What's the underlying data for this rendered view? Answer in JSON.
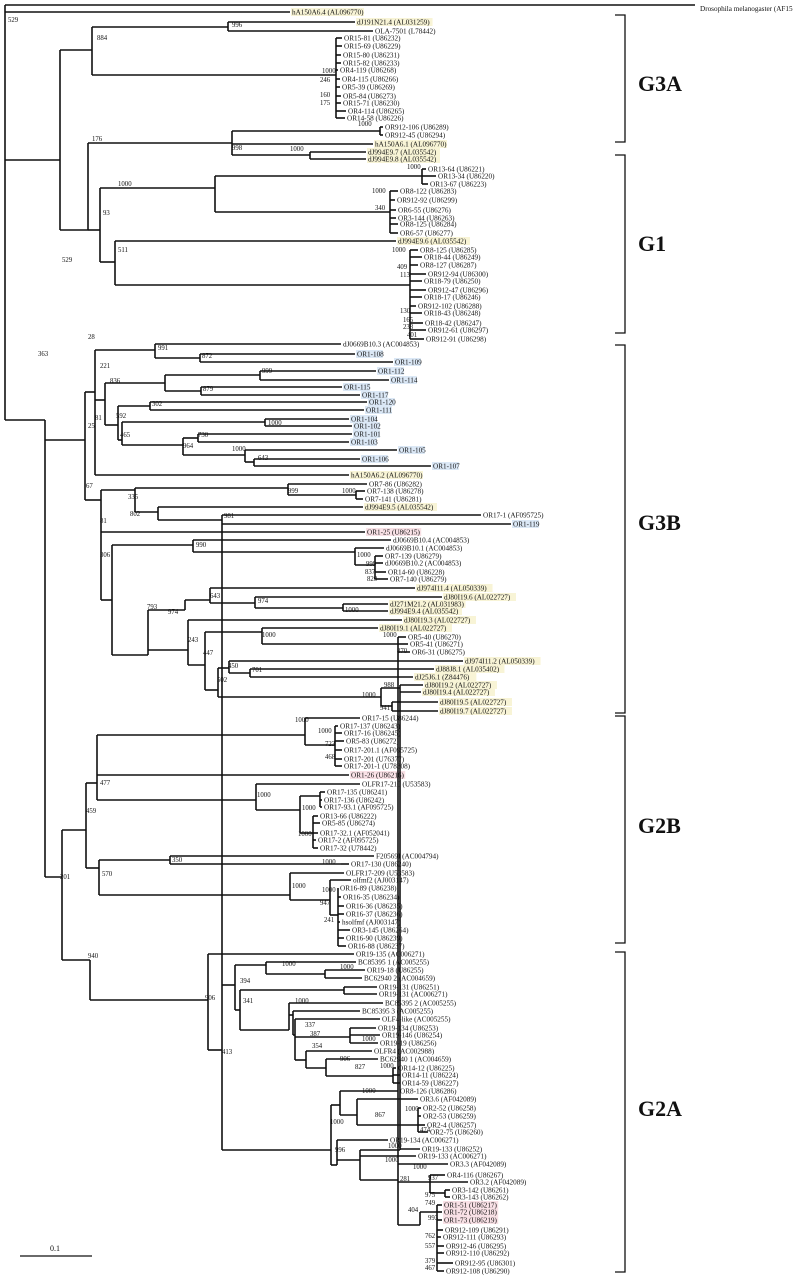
{
  "highlight_colors": {
    "blue": "#dbe8f6",
    "pink": "#f9e1e6",
    "yellow": "#f8f4d6"
  },
  "leaves": [
    {
      "label": "Drosophila melanogaster (AF156880)"
    },
    {
      "label": "hA150A6.4 (AL096770)",
      "hl": "yellow"
    },
    {
      "label": "dJ191N21.4 (AL031259)",
      "hl": "yellow"
    },
    {
      "label": "OLA-7501 (L78442)"
    },
    {
      "label": "OR15-81 (U86232)"
    },
    {
      "label": "OR15-69 (U86229)"
    },
    {
      "label": "OR15-80 (U86231)"
    },
    {
      "label": "OR15-82 (U86233)"
    },
    {
      "label": "OR4-119 (U86268)"
    },
    {
      "label": "OR4-115 (U86266)"
    },
    {
      "label": "OR5-39 (U86269)"
    },
    {
      "label": "OR5-84 (U86273)"
    },
    {
      "label": "OR15-71 (U86230)"
    },
    {
      "label": "OR4-114 (U86265)"
    },
    {
      "label": "OR14-58 (U86226)"
    },
    {
      "label": "OR912-106 (U86289)"
    },
    {
      "label": "OR912-45 (U86294)"
    },
    {
      "label": "hA150A6.1 (AL096770)",
      "hl": "yellow"
    },
    {
      "label": "dJ994E9.7 (AL035542)",
      "hl": "yellow"
    },
    {
      "label": "dJ994E9.8 (AL035542)",
      "hl": "yellow"
    },
    {
      "label": "OR13-64 (U86221)"
    },
    {
      "label": "OR13-34 (U86220)"
    },
    {
      "label": "OR13-67 (U86223)"
    },
    {
      "label": "OR8-122 (U86283)"
    },
    {
      "label": "OR912-92 (U86299)"
    },
    {
      "label": "OR6-55 (U86276)"
    },
    {
      "label": "OR3-144 (U86263)"
    },
    {
      "label": "OR8-125 (U86284)"
    },
    {
      "label": "OR6-57 (U86277)"
    },
    {
      "label": "dJ994E9.6 (AL035542)",
      "hl": "yellow"
    },
    {
      "label": "OR8-125 (U86285)"
    },
    {
      "label": "OR18-44 (U86249)"
    },
    {
      "label": "OR8-127 (U86287)"
    },
    {
      "label": "OR912-94 (U86300)"
    },
    {
      "label": "OR18-79 (U86250)"
    },
    {
      "label": "OR912-47 (U86296)"
    },
    {
      "label": "OR18-17 (U86246)"
    },
    {
      "label": "OR912-102 (U86288)"
    },
    {
      "label": "OR18-43 (U86248)"
    },
    {
      "label": "OR18-42 (U86247)"
    },
    {
      "label": "OR912-61 (U86297)"
    },
    {
      "label": "OR912-91 (U86298)"
    },
    {
      "label": "dJ0669B10.3 (AC004853)"
    },
    {
      "label": "OR1-108",
      "hl": "blue"
    },
    {
      "label": "OR1-109",
      "hl": "blue"
    },
    {
      "label": "OR1-112",
      "hl": "blue"
    },
    {
      "label": "OR1-114",
      "hl": "blue"
    },
    {
      "label": "OR1-115",
      "hl": "blue"
    },
    {
      "label": "OR1-117",
      "hl": "blue"
    },
    {
      "label": "OR1-120",
      "hl": "blue"
    },
    {
      "label": "OR1-111",
      "hl": "blue"
    },
    {
      "label": "OR1-104",
      "hl": "blue"
    },
    {
      "label": "OR1-102",
      "hl": "blue"
    },
    {
      "label": "OR1-101",
      "hl": "blue"
    },
    {
      "label": "OR1-103",
      "hl": "blue"
    },
    {
      "label": "OR1-105",
      "hl": "blue"
    },
    {
      "label": "OR1-106",
      "hl": "blue"
    },
    {
      "label": "OR1-107",
      "hl": "blue"
    },
    {
      "label": "hA150A6.2 (AL096770)",
      "hl": "yellow"
    },
    {
      "label": "OR7-86 (U86282)"
    },
    {
      "label": "OR7-138 (U86278)"
    },
    {
      "label": "OR7-141 (U86281)"
    },
    {
      "label": "dJ994E9.5 (AL035542)",
      "hl": "yellow"
    },
    {
      "label": "OR17-1 (AF095725)"
    },
    {
      "label": "OR1-119",
      "hl": "blue"
    },
    {
      "label": "OR1-25 (U86215)",
      "hl": "pink"
    },
    {
      "label": "dJ0669B10.4 (AC004853)"
    },
    {
      "label": "dJ0669B10.1 (AC004853)"
    },
    {
      "label": "OR7-139 (U86279)"
    },
    {
      "label": "dJ0669B10.2 (AC004853)"
    },
    {
      "label": "OR14-60 (U86228)"
    },
    {
      "label": "OR7-140 (U86279)"
    },
    {
      "label": "dJ974I11.4 (AL050339)",
      "hl": "yellow"
    },
    {
      "label": "dJ80I19.6 (AL022727)",
      "hl": "yellow"
    },
    {
      "label": "dJ271M21.2 (AL031983)",
      "hl": "yellow"
    },
    {
      "label": "dJ994E9.4 (AL035542)",
      "hl": "yellow"
    },
    {
      "label": "dJ80I19.3 (AL022727)",
      "hl": "yellow"
    },
    {
      "label": "dJ80I19.1 (AL022727)",
      "hl": "yellow"
    },
    {
      "label": "OR5-40 (U86270)"
    },
    {
      "label": "OR5-41 (U86271)"
    },
    {
      "label": "OR6-31 (U86275)"
    },
    {
      "label": "dJ974I11.2 (AL050339)",
      "hl": "yellow"
    },
    {
      "label": "dJ88J8.1 (AL035402)",
      "hl": "yellow"
    },
    {
      "label": "dJ25J6.1 (Z84476)",
      "hl": "yellow"
    },
    {
      "label": "dJ80I19.2 (AL022727)",
      "hl": "yellow"
    },
    {
      "label": "dJ80I19.4 (AL022727)",
      "hl": "yellow"
    },
    {
      "label": "dJ80I19.5 (AL022727)",
      "hl": "yellow"
    },
    {
      "label": "dJ80I19.7 (AL022727)",
      "hl": "yellow"
    },
    {
      "label": "OR17-15 (U86244)"
    },
    {
      "label": "OR17-137 (U86243)"
    },
    {
      "label": "OR17-16 (U86245)"
    },
    {
      "label": "OR5-83 (U86272)"
    },
    {
      "label": "OR17-201.1 (AF095725)"
    },
    {
      "label": "OR17-201 (U76377)"
    },
    {
      "label": "OR17-201-1 (U78308)"
    },
    {
      "label": "OR1-26 (U86216)",
      "hl": "pink"
    },
    {
      "label": "OLFR17-210 (U53583)"
    },
    {
      "label": "OR17-135 (U86241)"
    },
    {
      "label": "OR17-136 (U86242)"
    },
    {
      "label": "OR17-93.1 (AF095725)"
    },
    {
      "label": "OR13-66 (U86222)"
    },
    {
      "label": "OR5-85 (U86274)"
    },
    {
      "label": "OR17-32.1 (AF052041)"
    },
    {
      "label": "OR17-2 (AF095725)"
    },
    {
      "label": "OR17-32 (U78442)"
    },
    {
      "label": "F20569I (AC004794)"
    },
    {
      "label": "OR17-130 (U86240)"
    },
    {
      "label": "OLFR17-209 (U53583)"
    },
    {
      "label": "olfmf2 (AJ003147)"
    },
    {
      "label": "OR16-89 (U86238)"
    },
    {
      "label": "OR16-35 (U86234)"
    },
    {
      "label": "OR16-36 (U86235)"
    },
    {
      "label": "OR16-37 (U86236)"
    },
    {
      "label": "hsolfmf (AJ003147)"
    },
    {
      "label": "OR3-145 (U86264)"
    },
    {
      "label": "OR16-90 (U86239)"
    },
    {
      "label": "OR16-88 (U86237)"
    },
    {
      "label": "OR19-135 (AC006271)"
    },
    {
      "label": "BC85395 1 (AC005255)"
    },
    {
      "label": "OR19-18 (U86255)"
    },
    {
      "label": "BC62940 2 (AC004659)"
    },
    {
      "label": "OR19-131 (U86251)"
    },
    {
      "label": "OR19-131 (AC006271)"
    },
    {
      "label": "BC85395 2 (AC005255)"
    },
    {
      "label": "BC85395 3 (AC005255)"
    },
    {
      "label": "OLF4-like (AC005255)"
    },
    {
      "label": "OR19-134 (U86253)"
    },
    {
      "label": "OR19-146 (U86254)"
    },
    {
      "label": "OR19-19 (U86256)"
    },
    {
      "label": "OLFR4 (AC002988)"
    },
    {
      "label": "BC62940 1 (AC004659)"
    },
    {
      "label": "OR14-12 (U86225)"
    },
    {
      "label": "OR14-11 (U86224)"
    },
    {
      "label": "OR14-59 (U86227)"
    },
    {
      "label": "OR8-126 (U86286)"
    },
    {
      "label": "OR3.6 (AF042089)"
    },
    {
      "label": "OR2-52 (U86258)"
    },
    {
      "label": "OR2-53 (U86259)"
    },
    {
      "label": "OR2-4 (U86257)"
    },
    {
      "label": "OR2-75 (U86260)"
    },
    {
      "label": "OR19-134 (AC006271)"
    },
    {
      "label": "OR19-133 (U86252)"
    },
    {
      "label": "OR19-133 (AC006271)"
    },
    {
      "label": "OR3.3 (AF042089)"
    },
    {
      "label": "OR4-116 (U86267)"
    },
    {
      "label": "OR3.2 (AF042089)"
    },
    {
      "label": "OR3-142 (U86261)"
    },
    {
      "label": "OR3-143 (U86262)"
    },
    {
      "label": "OR1-51 (U86217)",
      "hl": "pink"
    },
    {
      "label": "OR1-72 (U86218)",
      "hl": "pink"
    },
    {
      "label": "OR1-73 (U86219)",
      "hl": "pink"
    },
    {
      "label": "OR912-109 (U86291)"
    },
    {
      "label": "OR912-111 (U86293)"
    },
    {
      "label": "OR912-46 (U86295)"
    },
    {
      "label": "OR912-110 (U86292)"
    },
    {
      "label": "OR912-95 (U86301)"
    },
    {
      "label": "OR912-108 (U86290)"
    }
  ],
  "bootstrap_values": [
    529,
    996,
    884,
    1000,
    246,
    160,
    175,
    1000,
    176,
    998,
    1000,
    1000,
    1000,
    1000,
    340,
    93,
    511,
    1000,
    409,
    113,
    130,
    165,
    238,
    401,
    529,
    28,
    363,
    991,
    872,
    221,
    999,
    836,
    879,
    81,
    302,
    592,
    1000,
    465,
    730,
    964,
    1000,
    643,
    25,
    67,
    999,
    335,
    1000,
    802,
    981,
    81,
    306,
    990,
    1000,
    999,
    837,
    820,
    793,
    643,
    974,
    1000,
    974,
    243,
    1000,
    1000,
    870,
    447,
    450,
    701,
    502,
    988,
    1000,
    941,
    1000,
    1000,
    723,
    468,
    477,
    1000,
    1000,
    459,
    1000,
    350,
    1000,
    570,
    201,
    1000,
    1000,
    947,
    241,
    940,
    1000,
    1000,
    394,
    906,
    341,
    1000,
    337,
    387,
    354,
    1000,
    906,
    827,
    1000,
    413,
    1000,
    867,
    1000,
    474,
    1000,
    996,
    1000,
    1000,
    1000,
    281,
    937,
    975,
    749,
    404,
    993,
    762,
    557,
    379,
    467
  ],
  "groups": [
    {
      "label": "G3A"
    },
    {
      "label": "G1"
    },
    {
      "label": "G3B"
    },
    {
      "label": "G2B"
    },
    {
      "label": "G2A"
    }
  ],
  "scale_bar": {
    "label": "0.1"
  }
}
